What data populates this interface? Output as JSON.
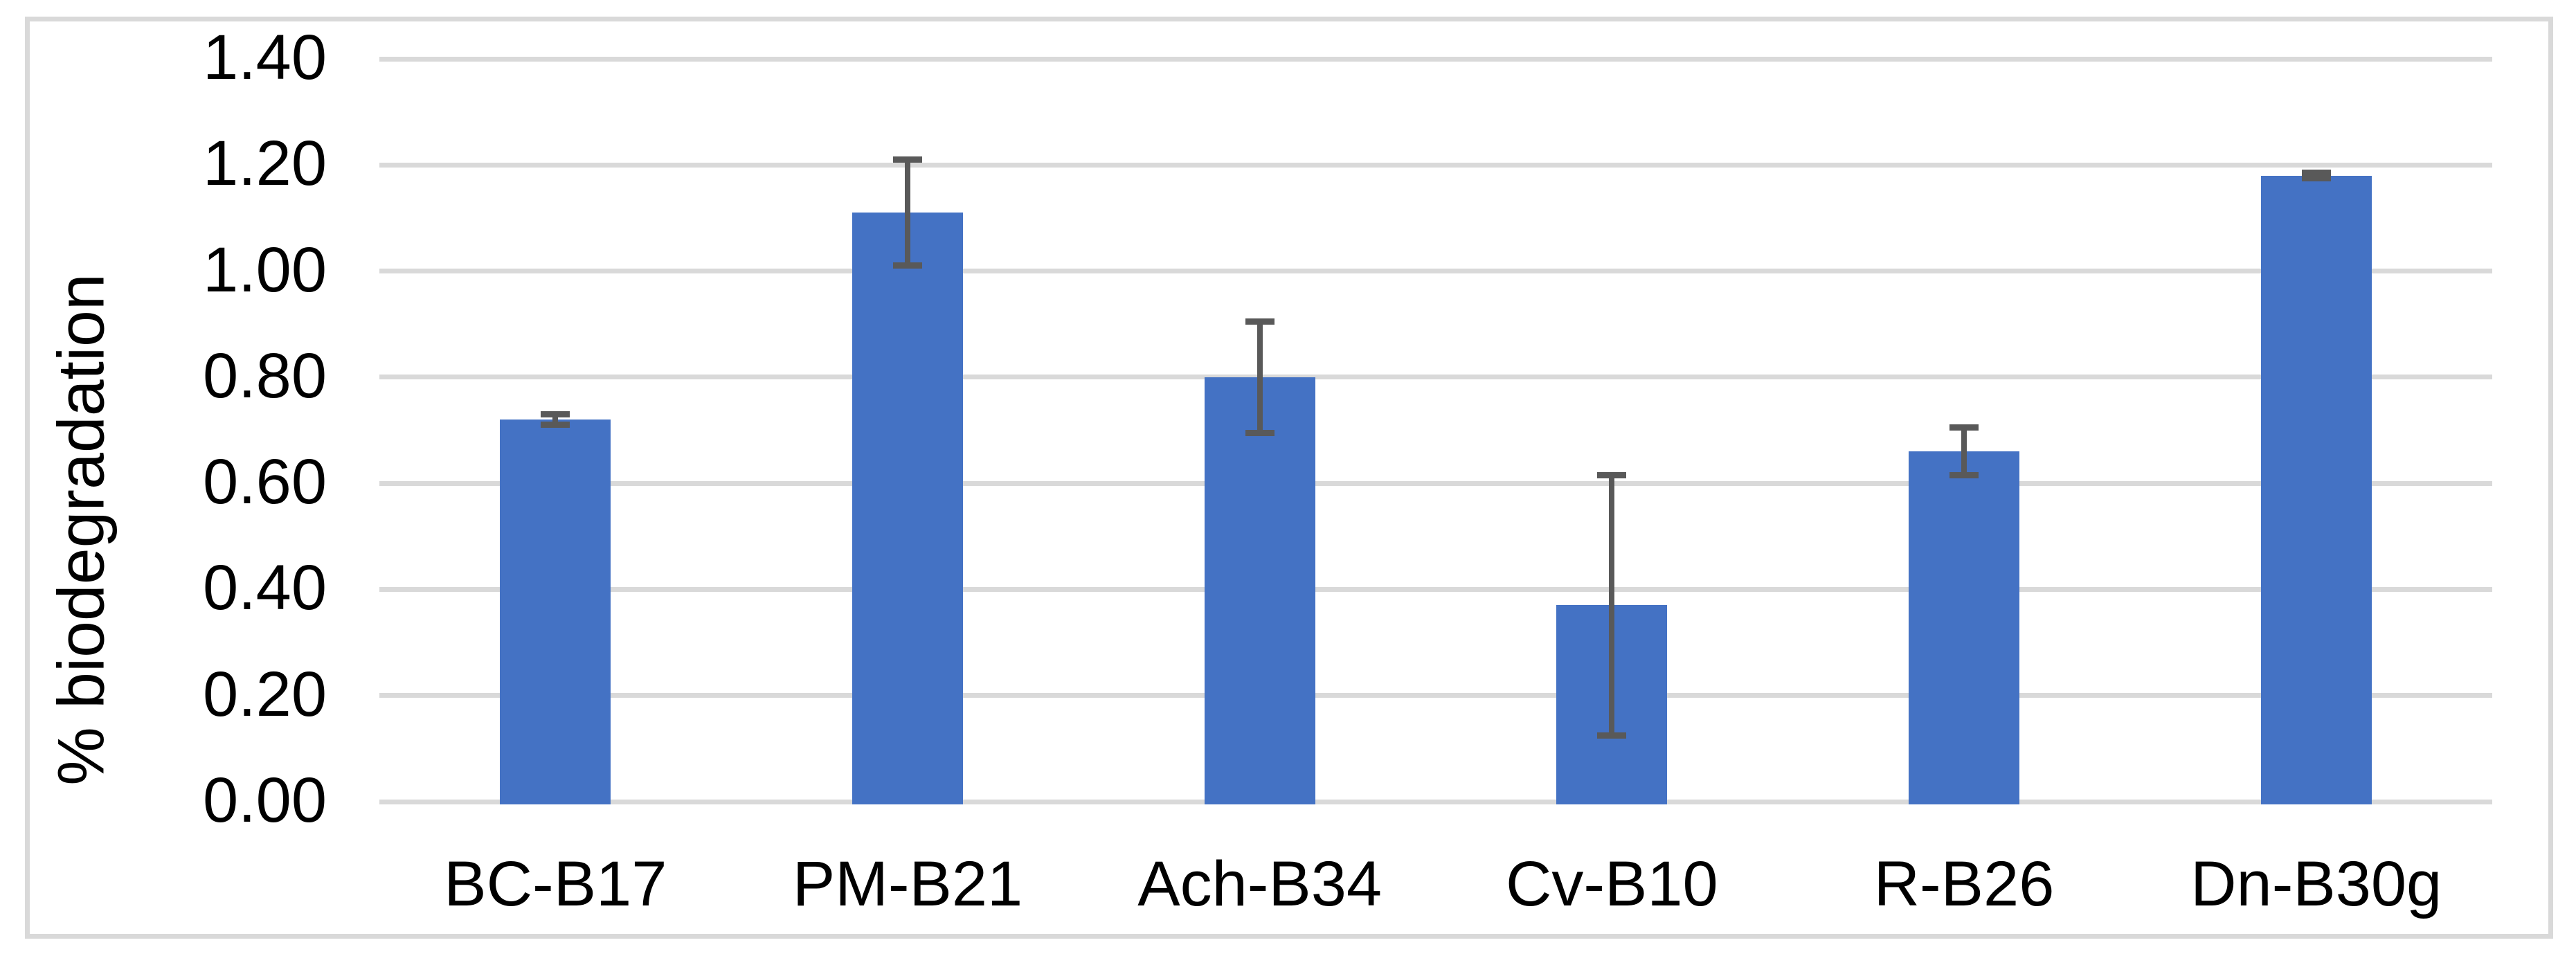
{
  "chart_data": {
    "type": "bar",
    "categories": [
      "BC-B17",
      "PM-B21",
      "Ach-B34",
      "Cv-B10",
      "R-B26",
      "Dn-B30g"
    ],
    "values": [
      0.72,
      1.11,
      0.8,
      0.37,
      0.66,
      1.18
    ],
    "errors": [
      0.01,
      0.1,
      0.105,
      0.245,
      0.045,
      0.005
    ],
    "xlabel": "",
    "ylabel": "% biodegradation",
    "ylim": [
      0,
      1.4
    ],
    "ytick_step": 0.2,
    "ytick_labels": [
      "0.00",
      "0.20",
      "0.40",
      "0.60",
      "0.80",
      "1.00",
      "1.20",
      "1.40"
    ],
    "grid": true,
    "legend_position": "none",
    "bar_color": "#4472C4",
    "error_bar_color": "#595959",
    "gridline_color": "#D9D9D9",
    "frame_color": "#D9D9D9",
    "text_color": "#000000"
  }
}
